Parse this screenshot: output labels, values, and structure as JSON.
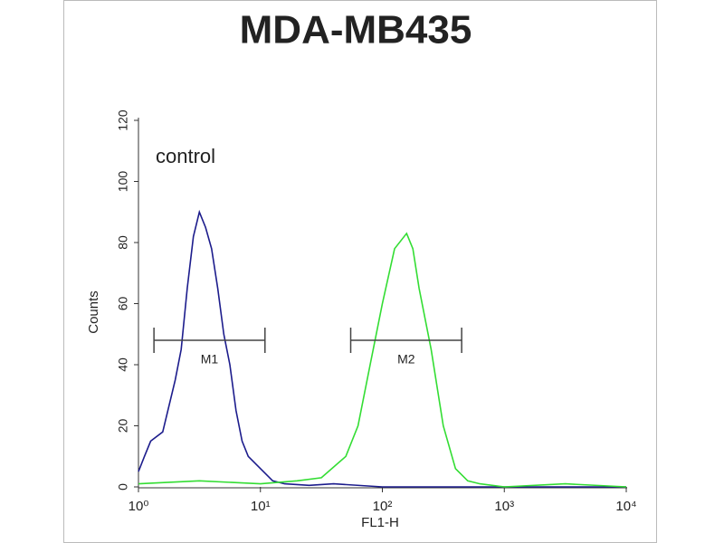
{
  "chart_data": {
    "type": "line",
    "title": "MDA-MB435",
    "xlabel": "FL1-H",
    "ylabel": "Counts",
    "annotation": "control",
    "xscale": "log",
    "xlim": [
      1,
      10000
    ],
    "xticks": [
      {
        "value": 1,
        "label": "10⁰"
      },
      {
        "value": 10,
        "label": "10¹"
      },
      {
        "value": 100,
        "label": "10²"
      },
      {
        "value": 1000,
        "label": "10³"
      },
      {
        "value": 10000,
        "label": "10⁴"
      }
    ],
    "ylim": [
      0,
      120
    ],
    "yticks": [
      0,
      20,
      40,
      60,
      80,
      100,
      120
    ],
    "series": [
      {
        "color": "#1c1c8c",
        "x": [
          1,
          1.12,
          1.26,
          1.58,
          2,
          2.24,
          2.51,
          2.82,
          3.16,
          3.55,
          3.98,
          4.47,
          5.01,
          5.62,
          6.31,
          7.08,
          7.94,
          10,
          12.6,
          15.8,
          25.1,
          39.8,
          100,
          10000
        ],
        "values": [
          5,
          10,
          15,
          18,
          35,
          45,
          65,
          82,
          90,
          85,
          78,
          65,
          50,
          40,
          25,
          15,
          10,
          6,
          2,
          1,
          0.5,
          1,
          0,
          0
        ]
      },
      {
        "color": "#33dd33",
        "x": [
          1,
          3.16,
          10,
          20,
          31.6,
          50.1,
          63.1,
          79.4,
          100,
          126,
          158,
          178,
          200,
          251,
          316,
          398,
          501,
          631,
          1000,
          3162,
          10000
        ],
        "values": [
          1,
          2,
          1,
          2,
          3,
          10,
          20,
          40,
          60,
          78,
          83,
          78,
          65,
          45,
          20,
          6,
          2,
          1,
          0,
          1,
          0
        ]
      }
    ],
    "gates": [
      {
        "label": "M1",
        "x": [
          1.34,
          10.9
        ],
        "y": 48
      },
      {
        "label": "M2",
        "x": [
          55,
          447
        ],
        "y": 48
      }
    ]
  }
}
